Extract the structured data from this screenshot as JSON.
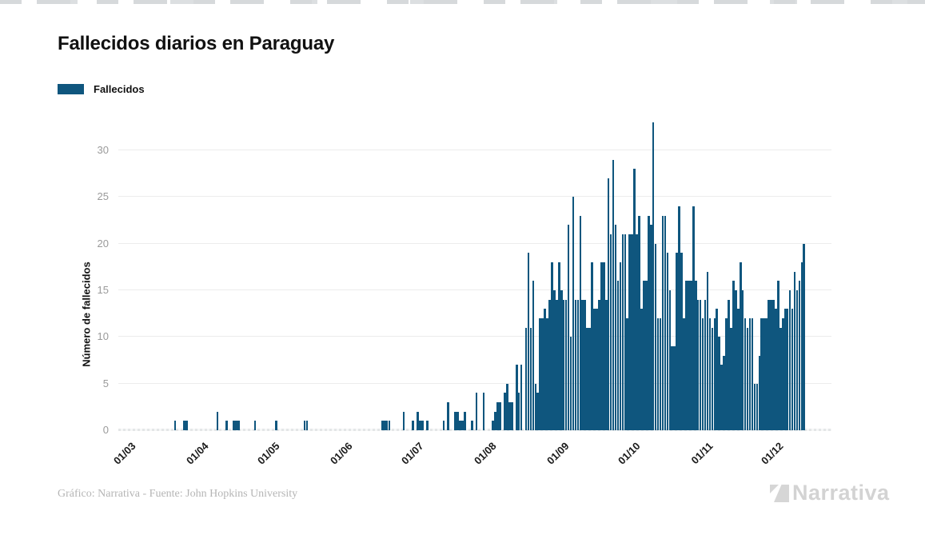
{
  "page": {
    "title": "Fallecidos diarios en Paraguay"
  },
  "legend": {
    "label": "Fallecidos",
    "color": "#0f567e"
  },
  "footer": {
    "credit": "Gráfico: Narrativa - Fuente: John Hopkins University",
    "brand": "Narrativa"
  },
  "colors": {
    "bar": "#0f567e",
    "gridline": "#ececec",
    "tick_text": "#9a9a9a",
    "muted": "#d3d3d3"
  },
  "chart_data": {
    "type": "bar",
    "title": "Fallecidos diarios en Paraguay",
    "xlabel": "",
    "ylabel": "Número de fallecidos",
    "legend": [
      "Fallecidos"
    ],
    "legend_position": "top-left",
    "grid": "horizontal",
    "y_ticks": [
      0,
      5,
      10,
      15,
      20,
      25,
      30
    ],
    "ylim": [
      0,
      33.7
    ],
    "x_tick_labels": [
      "01/03",
      "01/04",
      "01/05",
      "01/06",
      "01/07",
      "01/08",
      "01/09",
      "01/10",
      "01/11",
      "01/12"
    ],
    "month_tick_day_indices": [
      0,
      31,
      61,
      92,
      122,
      153,
      184,
      214,
      245,
      275
    ],
    "x_start": "01/03",
    "x_end": "13/12",
    "bar_color": "#0f567e",
    "values": [
      0,
      0,
      0,
      0,
      0,
      0,
      0,
      0,
      0,
      0,
      0,
      0,
      0,
      0,
      0,
      0,
      0,
      0,
      0,
      0,
      1,
      0,
      0,
      0,
      1,
      1,
      0,
      0,
      0,
      0,
      0,
      0,
      0,
      0,
      0,
      0,
      0,
      0,
      2,
      0,
      0,
      0,
      1,
      0,
      0,
      1,
      1,
      1,
      0,
      0,
      0,
      0,
      0,
      0,
      1,
      0,
      0,
      0,
      0,
      0,
      0,
      0,
      0,
      1,
      0,
      0,
      0,
      0,
      0,
      0,
      0,
      0,
      0,
      0,
      0,
      1,
      1,
      0,
      0,
      0,
      0,
      0,
      0,
      0,
      0,
      0,
      0,
      0,
      0,
      0,
      0,
      0,
      0,
      0,
      0,
      0,
      0,
      0,
      0,
      0,
      0,
      0,
      0,
      0,
      0,
      0,
      0,
      0,
      1,
      1,
      1,
      1,
      0,
      0,
      0,
      0,
      0,
      2,
      0,
      0,
      0,
      1,
      0,
      2,
      1,
      1,
      0,
      1,
      0,
      0,
      0,
      0,
      0,
      0,
      1,
      0,
      3,
      0,
      0,
      2,
      2,
      1,
      1,
      2,
      0,
      0,
      1,
      0,
      4,
      0,
      0,
      4,
      0,
      0,
      0,
      1,
      2,
      3,
      3,
      0,
      4,
      5,
      3,
      3,
      0,
      7,
      4,
      7,
      0,
      11,
      19,
      11,
      16,
      5,
      4,
      12,
      12,
      13,
      12,
      14,
      18,
      15,
      14,
      18,
      15,
      14,
      14,
      22,
      10,
      25,
      14,
      14,
      23,
      14,
      14,
      11,
      11,
      18,
      13,
      13,
      14,
      18,
      18,
      14,
      27,
      21,
      29,
      22,
      16,
      18,
      21,
      21,
      12,
      21,
      21,
      28,
      21,
      23,
      13,
      16,
      16,
      23,
      22,
      33,
      20,
      12,
      12,
      23,
      23,
      19,
      15,
      9,
      9,
      19,
      24,
      19,
      12,
      16,
      16,
      16,
      24,
      16,
      14,
      14,
      12,
      14,
      17,
      12,
      11,
      12,
      13,
      10,
      7,
      8,
      12,
      14,
      11,
      16,
      15,
      13,
      18,
      15,
      12,
      11,
      12,
      12,
      5,
      5,
      8,
      12,
      12,
      12,
      14,
      14,
      14,
      13,
      16,
      11,
      12,
      13,
      13,
      15,
      13,
      17,
      15,
      16,
      18,
      20
    ]
  }
}
